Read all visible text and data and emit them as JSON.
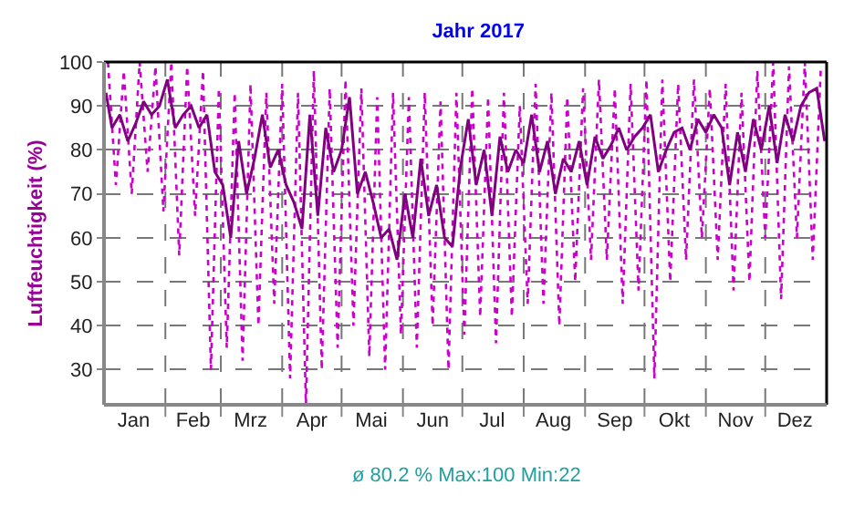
{
  "chart_data": {
    "type": "line",
    "title": "Jahr 2017",
    "ylabel": "Luftfeuchtigkeit (%)",
    "annotations": [
      "ø 80.2 % Max:100 Min:22"
    ],
    "xlim": [
      "2017-01-01",
      "2018-01-01"
    ],
    "xticks": [
      {
        "value": "2017-01-16",
        "label": "Jan"
      },
      {
        "value": "2017-02-01",
        "label": null
      },
      {
        "value": "2017-02-15",
        "label": "Feb"
      },
      {
        "value": "2017-03-01",
        "label": null
      },
      {
        "value": "2017-03-16",
        "label": "Mrz"
      },
      {
        "value": "2017-04-01",
        "label": null
      },
      {
        "value": "2017-04-16",
        "label": "Apr"
      },
      {
        "value": "2017-05-01",
        "label": null
      },
      {
        "value": "2017-05-16",
        "label": "Mai"
      },
      {
        "value": "2017-06-01",
        "label": null
      },
      {
        "value": "2017-06-16",
        "label": "Jun"
      },
      {
        "value": "2017-07-01",
        "label": null
      },
      {
        "value": "2017-07-16",
        "label": "Jul"
      },
      {
        "value": "2017-08-01",
        "label": null
      },
      {
        "value": "2017-08-16",
        "label": "Aug"
      },
      {
        "value": "2017-09-01",
        "label": null
      },
      {
        "value": "2017-09-16",
        "label": "Sep"
      },
      {
        "value": "2017-10-01",
        "label": null
      },
      {
        "value": "2017-10-16",
        "label": "Okt"
      },
      {
        "value": "2017-11-01",
        "label": null
      },
      {
        "value": "2017-11-16",
        "label": "Nov"
      },
      {
        "value": "2017-12-01",
        "label": null
      },
      {
        "value": "2017-12-16",
        "label": "Dez"
      }
    ],
    "ylim": [
      22,
      100
    ],
    "yticks": [
      30,
      40,
      50,
      60,
      70,
      80,
      90,
      100
    ],
    "grid": true,
    "series": [
      {
        "color": "#cc00cc",
        "line_style": "dotted",
        "x": [
          "2017-01-03",
          "2017-01-07",
          "2017-01-11",
          "2017-01-15",
          "2017-01-19",
          "2017-01-23",
          "2017-01-27",
          "2017-01-31",
          "2017-02-04",
          "2017-02-08",
          "2017-02-12",
          "2017-02-16",
          "2017-02-20",
          "2017-02-24",
          "2017-02-28",
          "2017-03-04",
          "2017-03-08",
          "2017-03-12",
          "2017-03-16",
          "2017-03-20",
          "2017-03-24",
          "2017-03-28",
          "2017-04-01",
          "2017-04-05",
          "2017-04-09",
          "2017-04-13",
          "2017-04-17",
          "2017-04-21",
          "2017-04-25",
          "2017-04-29",
          "2017-05-03",
          "2017-05-07",
          "2017-05-11",
          "2017-05-15",
          "2017-05-19",
          "2017-05-23",
          "2017-05-27",
          "2017-05-31",
          "2017-06-04",
          "2017-06-08",
          "2017-06-12",
          "2017-06-16",
          "2017-06-20",
          "2017-06-24",
          "2017-06-28",
          "2017-07-02",
          "2017-07-06",
          "2017-07-10",
          "2017-07-14",
          "2017-07-18",
          "2017-07-22",
          "2017-07-26",
          "2017-07-30",
          "2017-08-03",
          "2017-08-07",
          "2017-08-11",
          "2017-08-15",
          "2017-08-19",
          "2017-08-23",
          "2017-08-27",
          "2017-08-31",
          "2017-09-04",
          "2017-09-08",
          "2017-09-12",
          "2017-09-16",
          "2017-09-20",
          "2017-09-24",
          "2017-09-28",
          "2017-10-02",
          "2017-10-06",
          "2017-10-10",
          "2017-10-14",
          "2017-10-18",
          "2017-10-22",
          "2017-10-26",
          "2017-10-30",
          "2017-11-03",
          "2017-11-07",
          "2017-11-11",
          "2017-11-15",
          "2017-11-19",
          "2017-11-23",
          "2017-11-27",
          "2017-12-01",
          "2017-12-05",
          "2017-12-09",
          "2017-12-13",
          "2017-12-17",
          "2017-12-21",
          "2017-12-25",
          "2017-12-29"
        ],
        "values": [
          100,
          72,
          98,
          70,
          100,
          75,
          99,
          66,
          100,
          56,
          99,
          65,
          98,
          30,
          94,
          35,
          93,
          32,
          95,
          40,
          93,
          45,
          95,
          28,
          93,
          22,
          98,
          30,
          94,
          35,
          96,
          40,
          94,
          33,
          92,
          30,
          93,
          38,
          92,
          35,
          93,
          40,
          91,
          30,
          93,
          38,
          94,
          42,
          92,
          36,
          93,
          42,
          90,
          45,
          95,
          45,
          93,
          40,
          92,
          50,
          94,
          55,
          96,
          55,
          94,
          45,
          95,
          48,
          96,
          28,
          96,
          50,
          95,
          55,
          96,
          60,
          94,
          55,
          95,
          48,
          93,
          50,
          98,
          60,
          100,
          46,
          99,
          60,
          100,
          55,
          98
        ]
      },
      {
        "color": "#800080",
        "line_style": "solid",
        "x": [
          "2017-01-02",
          "2017-01-05",
          "2017-01-09",
          "2017-01-13",
          "2017-01-17",
          "2017-01-21",
          "2017-01-25",
          "2017-01-29",
          "2017-02-02",
          "2017-02-06",
          "2017-02-10",
          "2017-02-14",
          "2017-02-18",
          "2017-02-22",
          "2017-02-26",
          "2017-03-02",
          "2017-03-06",
          "2017-03-10",
          "2017-03-14",
          "2017-03-18",
          "2017-03-22",
          "2017-03-26",
          "2017-03-30",
          "2017-04-03",
          "2017-04-07",
          "2017-04-11",
          "2017-04-15",
          "2017-04-19",
          "2017-04-23",
          "2017-04-27",
          "2017-05-01",
          "2017-05-05",
          "2017-05-09",
          "2017-05-13",
          "2017-05-17",
          "2017-05-21",
          "2017-05-25",
          "2017-05-29",
          "2017-06-02",
          "2017-06-06",
          "2017-06-10",
          "2017-06-14",
          "2017-06-18",
          "2017-06-22",
          "2017-06-26",
          "2017-06-30",
          "2017-07-04",
          "2017-07-08",
          "2017-07-12",
          "2017-07-16",
          "2017-07-20",
          "2017-07-24",
          "2017-07-28",
          "2017-08-01",
          "2017-08-05",
          "2017-08-09",
          "2017-08-13",
          "2017-08-17",
          "2017-08-21",
          "2017-08-25",
          "2017-08-29",
          "2017-09-02",
          "2017-09-06",
          "2017-09-10",
          "2017-09-14",
          "2017-09-18",
          "2017-09-22",
          "2017-09-26",
          "2017-09-30",
          "2017-10-04",
          "2017-10-08",
          "2017-10-12",
          "2017-10-16",
          "2017-10-20",
          "2017-10-24",
          "2017-10-28",
          "2017-11-01",
          "2017-11-05",
          "2017-11-09",
          "2017-11-13",
          "2017-11-17",
          "2017-11-21",
          "2017-11-25",
          "2017-11-29",
          "2017-12-03",
          "2017-12-07",
          "2017-12-11",
          "2017-12-15",
          "2017-12-19",
          "2017-12-23",
          "2017-12-27",
          "2017-12-31"
        ],
        "values": [
          93,
          85,
          88,
          82,
          86,
          91,
          88,
          90,
          96,
          85,
          88,
          90,
          85,
          88,
          75,
          72,
          60,
          82,
          70,
          78,
          88,
          76,
          80,
          72,
          68,
          62,
          88,
          65,
          85,
          75,
          80,
          92,
          70,
          75,
          68,
          60,
          62,
          55,
          70,
          60,
          78,
          65,
          72,
          60,
          58,
          76,
          87,
          72,
          80,
          65,
          83,
          75,
          80,
          77,
          88,
          75,
          82,
          70,
          78,
          75,
          82,
          72,
          83,
          78,
          81,
          85,
          80,
          83,
          85,
          88,
          75,
          80,
          84,
          85,
          80,
          87,
          84,
          88,
          85,
          72,
          84,
          75,
          87,
          80,
          90,
          77,
          88,
          82,
          90,
          93,
          94,
          82
        ]
      }
    ]
  }
}
